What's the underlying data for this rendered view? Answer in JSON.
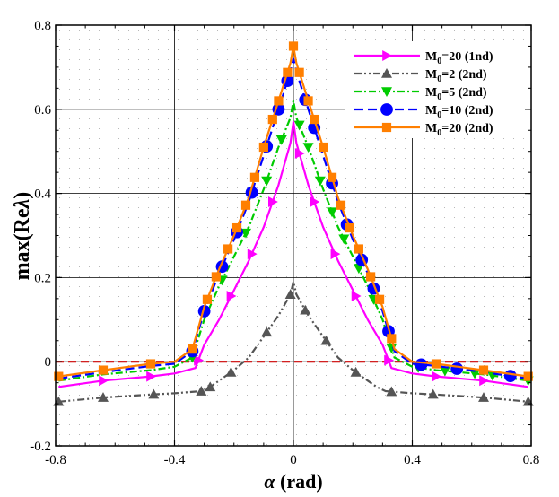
{
  "chart_data": {
    "type": "line",
    "xlabel_symbol": "α",
    "xlabel_unit": "(rad)",
    "ylabel_text": "max(Re",
    "ylabel_symbol": "λ",
    "ylabel_close": ")",
    "xlim": [
      -0.8,
      0.8
    ],
    "ylim": [
      -0.2,
      0.8
    ],
    "x_ticks": [
      -0.8,
      -0.4,
      0,
      0.4,
      0.8
    ],
    "x_tick_labels": [
      "-0.8",
      "-0.4",
      "0",
      "0.4",
      "0.8"
    ],
    "y_ticks": [
      -0.2,
      0,
      0.2,
      0.4,
      0.6,
      0.8
    ],
    "y_tick_labels": [
      "-0.2",
      "0",
      "0.2",
      "0.4",
      "0.6",
      "0.8"
    ],
    "zero_line_color": "#cc0000",
    "series": [
      {
        "name": "M0=20 (1nd)",
        "label_main": "M",
        "label_sub": "0",
        "label_rest": "=20 (1nd)",
        "color": "#ff00ff",
        "dash": "none",
        "marker": "triangle-right",
        "x": [
          -0.79,
          -0.64,
          -0.48,
          -0.4,
          -0.33,
          -0.3,
          -0.25,
          -0.2,
          -0.15,
          -0.1,
          -0.05,
          -0.01,
          0,
          0.01,
          0.05,
          0.1,
          0.15,
          0.2,
          0.25,
          0.3,
          0.33,
          0.4,
          0.48,
          0.64,
          0.79
        ],
        "y": [
          -0.06,
          -0.045,
          -0.035,
          -0.028,
          -0.015,
          0.04,
          0.1,
          0.17,
          0.24,
          0.32,
          0.42,
          0.52,
          0.57,
          0.52,
          0.42,
          0.32,
          0.24,
          0.17,
          0.1,
          0.04,
          -0.015,
          -0.028,
          -0.035,
          -0.045,
          -0.06
        ],
        "markers_x": [
          -0.64,
          -0.48,
          -0.32,
          -0.21,
          -0.14,
          -0.07,
          0.02,
          0.07,
          0.14,
          0.21,
          0.32,
          0.48,
          0.64
        ]
      },
      {
        "name": "M0=2 (2nd)",
        "label_main": "M",
        "label_sub": "0",
        "label_rest": "=2   (2nd)",
        "color": "#555555",
        "dash": "8 3 2 3 2 3",
        "marker": "triangle-up",
        "x": [
          -0.79,
          -0.64,
          -0.48,
          -0.4,
          -0.31,
          -0.28,
          -0.25,
          -0.2,
          -0.15,
          -0.1,
          -0.05,
          -0.01,
          0,
          0.01,
          0.05,
          0.1,
          0.15,
          0.2,
          0.25,
          0.28,
          0.31,
          0.4,
          0.48,
          0.64,
          0.79
        ],
        "y": [
          -0.095,
          -0.085,
          -0.078,
          -0.075,
          -0.07,
          -0.06,
          -0.045,
          -0.02,
          0.01,
          0.06,
          0.11,
          0.16,
          0.19,
          0.16,
          0.11,
          0.06,
          0.01,
          -0.02,
          -0.045,
          -0.06,
          -0.07,
          -0.075,
          -0.078,
          -0.085,
          -0.095
        ],
        "markers_x": [
          -0.79,
          -0.64,
          -0.47,
          -0.31,
          -0.28,
          -0.21,
          -0.09,
          -0.01,
          0.04,
          0.11,
          0.21,
          0.33,
          0.47,
          0.64,
          0.79
        ]
      },
      {
        "name": "M0=5 (2nd)",
        "label_main": "M",
        "label_sub": "0",
        "label_rest": "=5   (2nd)",
        "color": "#00cc00",
        "dash": "8 3 2 3",
        "marker": "triangle-down",
        "x": [
          -0.79,
          -0.64,
          -0.48,
          -0.4,
          -0.34,
          -0.3,
          -0.25,
          -0.2,
          -0.15,
          -0.1,
          -0.05,
          -0.01,
          0,
          0.01,
          0.05,
          0.1,
          0.15,
          0.2,
          0.25,
          0.3,
          0.34,
          0.4,
          0.48,
          0.64,
          0.79
        ],
        "y": [
          -0.045,
          -0.03,
          -0.02,
          -0.012,
          0.01,
          0.1,
          0.18,
          0.25,
          0.32,
          0.41,
          0.51,
          0.58,
          0.62,
          0.58,
          0.51,
          0.41,
          0.32,
          0.25,
          0.18,
          0.1,
          0.01,
          -0.012,
          -0.02,
          -0.03,
          -0.045
        ],
        "markers_x": [
          -0.34,
          -0.24,
          -0.16,
          -0.09,
          -0.04,
          0.02,
          0.05,
          0.09,
          0.13,
          0.17,
          0.22,
          0.27,
          0.33,
          0.42,
          0.51,
          0.61,
          0.67,
          0.79
        ]
      },
      {
        "name": "M0=10 (2nd)",
        "label_main": "M",
        "label_sub": "0",
        "label_rest": "=10 (2nd)",
        "color": "#0000ff",
        "dash": "10 5",
        "marker": "circle",
        "x": [
          -0.79,
          -0.64,
          -0.48,
          -0.4,
          -0.34,
          -0.3,
          -0.25,
          -0.2,
          -0.15,
          -0.1,
          -0.05,
          -0.01,
          0,
          0.01,
          0.05,
          0.1,
          0.15,
          0.2,
          0.25,
          0.3,
          0.34,
          0.4,
          0.48,
          0.64,
          0.79
        ],
        "y": [
          -0.04,
          -0.025,
          -0.01,
          -0.005,
          0.025,
          0.12,
          0.21,
          0.29,
          0.38,
          0.49,
          0.6,
          0.69,
          0.72,
          0.69,
          0.6,
          0.49,
          0.38,
          0.29,
          0.21,
          0.12,
          0.025,
          -0.005,
          -0.01,
          -0.025,
          -0.04
        ],
        "markers_x": [
          -0.34,
          -0.3,
          -0.24,
          -0.19,
          -0.14,
          -0.09,
          -0.05,
          -0.02,
          0.04,
          0.07,
          0.13,
          0.18,
          0.23,
          0.27,
          0.32,
          0.43,
          0.55,
          0.73
        ]
      },
      {
        "name": "M0=20 (2nd)",
        "label_main": "M",
        "label_sub": "0",
        "label_rest": "=20 (2nd)",
        "color": "#ff7f00",
        "dash": "none",
        "marker": "square",
        "x": [
          -0.79,
          -0.64,
          -0.48,
          -0.4,
          -0.34,
          -0.3,
          -0.25,
          -0.2,
          -0.15,
          -0.1,
          -0.05,
          -0.01,
          0,
          0.01,
          0.05,
          0.1,
          0.15,
          0.2,
          0.25,
          0.3,
          0.34,
          0.4,
          0.48,
          0.64,
          0.79
        ],
        "y": [
          -0.035,
          -0.02,
          -0.005,
          0,
          0.03,
          0.13,
          0.22,
          0.3,
          0.39,
          0.51,
          0.62,
          0.71,
          0.75,
          0.71,
          0.62,
          0.51,
          0.39,
          0.3,
          0.22,
          0.13,
          0.03,
          0,
          -0.005,
          -0.02,
          -0.035
        ],
        "markers_x": [
          -0.79,
          -0.64,
          -0.48,
          -0.34,
          -0.29,
          -0.26,
          -0.22,
          -0.19,
          -0.16,
          -0.13,
          -0.1,
          -0.07,
          -0.05,
          -0.02,
          0,
          0.02,
          0.05,
          0.07,
          0.1,
          0.13,
          0.16,
          0.19,
          0.22,
          0.26,
          0.29,
          0.33,
          0.48,
          0.64,
          0.79
        ]
      }
    ]
  }
}
